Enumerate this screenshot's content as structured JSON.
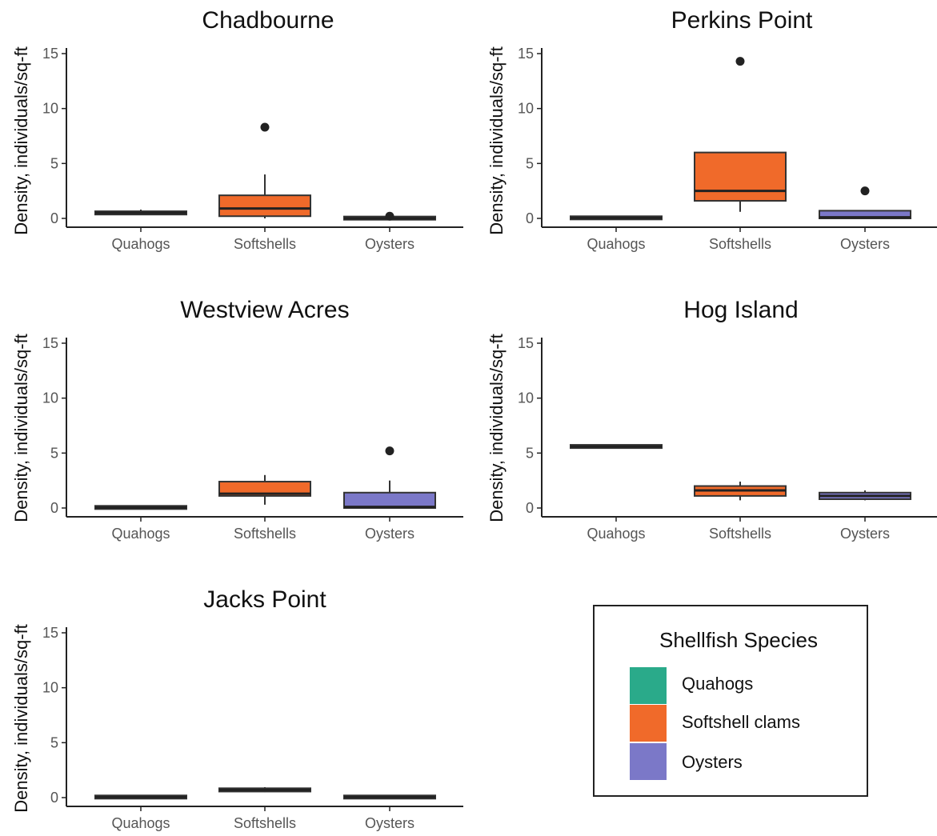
{
  "chart_data": {
    "type": "box",
    "ylabel": "Density, individuals/sq-ft",
    "categories": [
      "Quahogs",
      "Softshells",
      "Oysters"
    ],
    "ylim": [
      0,
      15
    ],
    "yticks": [
      0,
      5,
      10,
      15
    ],
    "grid": false,
    "legend": {
      "title": "Shellfish Species",
      "placement": "bottom-right",
      "items": [
        {
          "label": "Quahogs",
          "color": "#2aaa8a"
        },
        {
          "label": "Softshell clams",
          "color": "#f06a2a"
        },
        {
          "label": "Oysters",
          "color": "#7b78c8"
        }
      ]
    },
    "panels": [
      {
        "title": "Chadbourne",
        "boxes": [
          {
            "category": "Quahogs",
            "min": 0.3,
            "q1": 0.35,
            "median": 0.5,
            "q3": 0.65,
            "max": 0.8,
            "outliers": []
          },
          {
            "category": "Softshells",
            "min": 0.0,
            "q1": 0.2,
            "median": 0.9,
            "q3": 2.1,
            "max": 4.0,
            "outliers": [
              8.3
            ]
          },
          {
            "category": "Oysters",
            "min": 0.0,
            "q1": 0.0,
            "median": 0.0,
            "q3": 0.05,
            "max": 0.1,
            "outliers": [
              0.2
            ]
          }
        ]
      },
      {
        "title": "Perkins Point",
        "boxes": [
          {
            "category": "Quahogs",
            "min": 0.0,
            "q1": 0.0,
            "median": 0.05,
            "q3": 0.1,
            "max": 0.1,
            "outliers": []
          },
          {
            "category": "Softshells",
            "min": 0.6,
            "q1": 1.6,
            "median": 2.5,
            "q3": 6.0,
            "max": 6.0,
            "outliers": [
              14.3
            ]
          },
          {
            "category": "Oysters",
            "min": 0.0,
            "q1": 0.0,
            "median": 0.1,
            "q3": 0.7,
            "max": 0.7,
            "outliers": [
              2.5
            ]
          }
        ]
      },
      {
        "title": "Westview Acres",
        "boxes": [
          {
            "category": "Quahogs",
            "min": 0.0,
            "q1": 0.0,
            "median": 0.05,
            "q3": 0.1,
            "max": 0.1,
            "outliers": []
          },
          {
            "category": "Softshells",
            "min": 0.3,
            "q1": 1.1,
            "median": 1.3,
            "q3": 2.4,
            "max": 3.0,
            "outliers": []
          },
          {
            "category": "Oysters",
            "min": 0.0,
            "q1": 0.0,
            "median": 0.1,
            "q3": 1.4,
            "max": 2.5,
            "outliers": [
              5.2
            ]
          }
        ]
      },
      {
        "title": "Hog Island",
        "boxes": [
          {
            "category": "Quahogs",
            "min": 5.6,
            "q1": 5.6,
            "median": 5.6,
            "q3": 5.6,
            "max": 5.6,
            "outliers": []
          },
          {
            "category": "Softshells",
            "min": 0.7,
            "q1": 1.1,
            "median": 1.6,
            "q3": 2.0,
            "max": 2.4,
            "outliers": []
          },
          {
            "category": "Oysters",
            "min": 0.7,
            "q1": 0.8,
            "median": 1.1,
            "q3": 1.4,
            "max": 1.6,
            "outliers": []
          }
        ]
      },
      {
        "title": "Jacks Point",
        "boxes": [
          {
            "category": "Quahogs",
            "min": 0.0,
            "q1": 0.0,
            "median": 0.05,
            "q3": 0.1,
            "max": 0.1,
            "outliers": []
          },
          {
            "category": "Softshells",
            "min": 0.5,
            "q1": 0.55,
            "median": 0.7,
            "q3": 0.85,
            "max": 0.95,
            "outliers": []
          },
          {
            "category": "Oysters",
            "min": 0.0,
            "q1": 0.0,
            "median": 0.05,
            "q3": 0.1,
            "max": 0.1,
            "outliers": []
          }
        ]
      }
    ]
  }
}
